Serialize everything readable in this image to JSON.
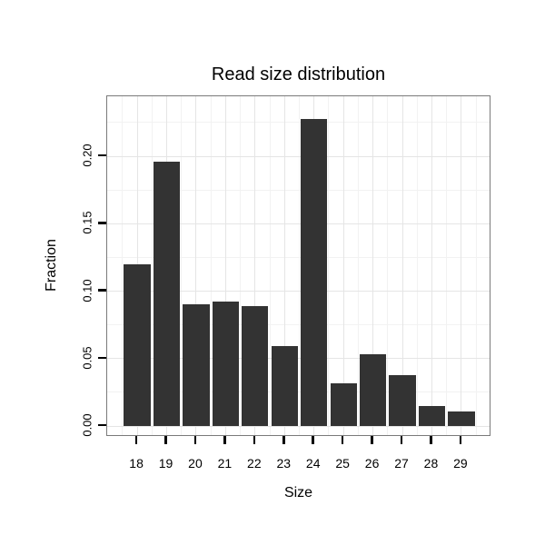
{
  "chart_data": {
    "type": "bar",
    "title": "Read size distribution",
    "xlabel": "Size",
    "ylabel": "Fraction",
    "categories": [
      18,
      19,
      20,
      21,
      22,
      23,
      24,
      25,
      26,
      27,
      28,
      29
    ],
    "values": [
      0.12,
      0.196,
      0.09,
      0.092,
      0.089,
      0.059,
      0.228,
      0.032,
      0.053,
      0.038,
      0.015,
      0.011
    ],
    "yticks": [
      0.0,
      0.05,
      0.1,
      0.15,
      0.2
    ],
    "ytick_labels": [
      "0.00",
      "0.05",
      "0.10",
      "0.15",
      "0.20"
    ],
    "ylim": [
      0,
      0.2445
    ],
    "bar_color": "#333333",
    "grid": true,
    "legend": "none",
    "panel_border_color": "#7a7a7a",
    "grid_major_color": "#e5e5e5",
    "grid_minor_color": "#f2f2f2"
  }
}
